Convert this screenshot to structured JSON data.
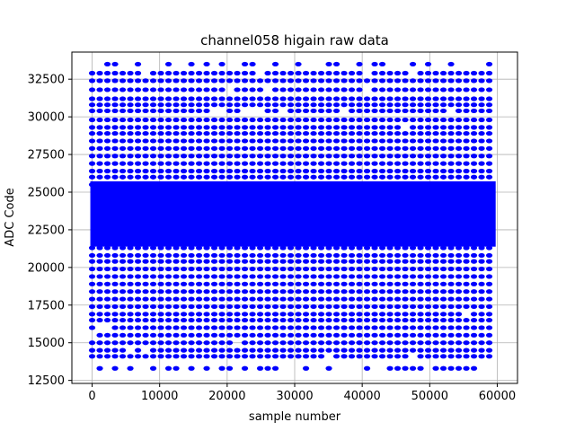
{
  "chart_data": {
    "type": "scatter",
    "title": "channel058 higain raw data",
    "xlabel": "sample number",
    "ylabel": "ADC Code",
    "xlim": [
      -3000,
      63000
    ],
    "ylim": [
      12300,
      34300
    ],
    "xticks": [
      0,
      10000,
      20000,
      30000,
      40000,
      50000,
      60000
    ],
    "yticks": [
      12500,
      15000,
      17500,
      20000,
      22500,
      25000,
      27500,
      30000,
      32500
    ],
    "grid": true,
    "legend": "none",
    "series": [
      {
        "color": "#0000ff",
        "marker": "circle",
        "x_range": [
          0,
          59500
        ],
        "y_range": [
          13300,
          33500
        ],
        "dense_band": [
          21500,
          25600
        ],
        "levels": [
          {
            "y": 33500,
            "fill": 0.35
          },
          {
            "y": 32900,
            "fill": 0.95
          },
          {
            "y": 32400,
            "fill": 0.97
          },
          {
            "y": 31800,
            "fill": 0.97
          },
          {
            "y": 31200,
            "fill": 0.97
          },
          {
            "y": 30800,
            "fill": 0.98
          },
          {
            "y": 30400,
            "fill": 0.8
          },
          {
            "y": 29800,
            "fill": 0.98
          },
          {
            "y": 29300,
            "fill": 0.99
          },
          {
            "y": 28900,
            "fill": 1.0
          },
          {
            "y": 28400,
            "fill": 1.0
          },
          {
            "y": 27900,
            "fill": 1.0
          },
          {
            "y": 27400,
            "fill": 1.0
          },
          {
            "y": 26900,
            "fill": 1.0
          },
          {
            "y": 26400,
            "fill": 1.0
          },
          {
            "y": 26000,
            "fill": 1.0
          },
          {
            "y": 25500,
            "fill": 1.0
          },
          {
            "y": 21300,
            "fill": 1.0
          },
          {
            "y": 20800,
            "fill": 1.0
          },
          {
            "y": 20400,
            "fill": 1.0
          },
          {
            "y": 19900,
            "fill": 1.0
          },
          {
            "y": 19400,
            "fill": 1.0
          },
          {
            "y": 18900,
            "fill": 1.0
          },
          {
            "y": 18400,
            "fill": 1.0
          },
          {
            "y": 17900,
            "fill": 1.0
          },
          {
            "y": 17400,
            "fill": 1.0
          },
          {
            "y": 16900,
            "fill": 0.99
          },
          {
            "y": 16500,
            "fill": 0.98
          },
          {
            "y": 16000,
            "fill": 0.97
          },
          {
            "y": 15500,
            "fill": 0.97
          },
          {
            "y": 15000,
            "fill": 0.97
          },
          {
            "y": 14500,
            "fill": 0.97
          },
          {
            "y": 14100,
            "fill": 0.95
          },
          {
            "y": 13300,
            "fill": 0.6
          }
        ]
      }
    ]
  }
}
